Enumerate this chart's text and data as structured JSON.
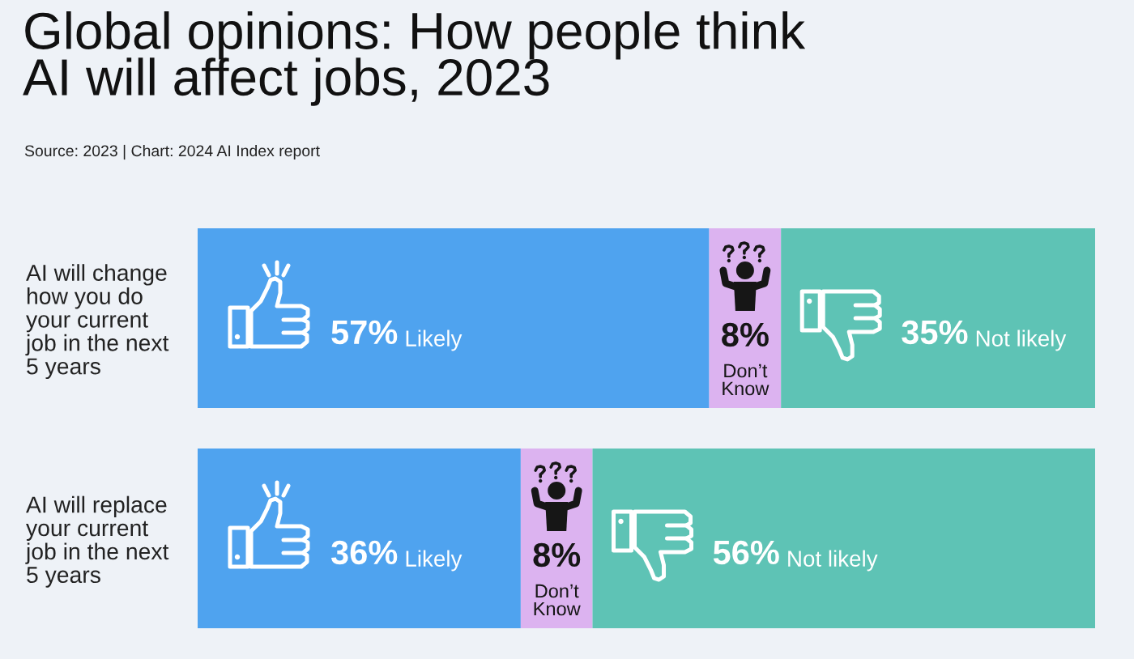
{
  "chart_data": {
    "type": "bar",
    "orientation": "horizontal",
    "stacked": true,
    "title": "Global opinions: How people think\nAI will affect jobs, 2023",
    "annotations": [
      "Source: 2023 | Chart: 2024 AI Index report"
    ],
    "categories": [
      "AI will change\nhow you do\nyour current\njob in the next\n5 years",
      "AI will replace\nyour current\njob in the next\n5 years"
    ],
    "series": [
      {
        "name": "Likely",
        "color": "#4fa3ef",
        "values": [
          57,
          36
        ],
        "value_labels": [
          "57%",
          "36%"
        ]
      },
      {
        "name": "Don’t\nKnow",
        "color": "#dcb3f0",
        "values": [
          8,
          8
        ],
        "value_labels": [
          "8%",
          "8%"
        ]
      },
      {
        "name": "Not likely",
        "color": "#5ec3b5",
        "values": [
          35,
          56
        ],
        "value_labels": [
          "35%",
          "56%"
        ]
      }
    ],
    "xlim": [
      0,
      100
    ],
    "tick_labels": "y"
  }
}
